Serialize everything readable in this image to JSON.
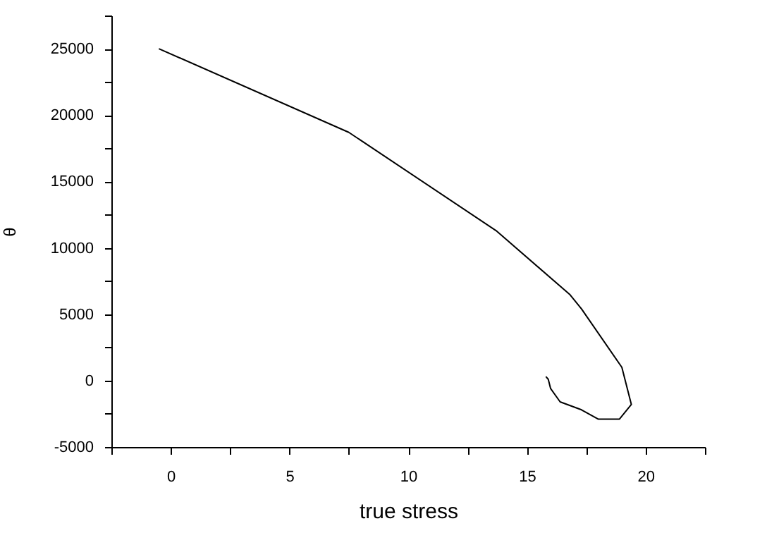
{
  "chart_data": {
    "type": "line",
    "xlabel": "true stress",
    "ylabel": "θ",
    "x": [
      -0.5,
      7.5,
      13.7,
      16.8,
      17.3,
      19.0,
      19.4,
      18.9,
      18.0,
      17.3,
      16.4,
      16.0,
      15.9,
      15.8
    ],
    "series": [
      {
        "color": "#000000",
        "values": [
          25000,
          18700,
          11300,
          6500,
          5400,
          1000,
          -1800,
          -2900,
          -2900,
          -2200,
          -1600,
          -600,
          100,
          300
        ]
      }
    ],
    "xlim": [
      -2.5,
      22.5
    ],
    "xticks": [
      {
        "value": -2.5,
        "label": null
      },
      0,
      {
        "value": 2.5,
        "label": null
      },
      5,
      {
        "value": 7.5,
        "label": null
      },
      10,
      {
        "value": 12.5,
        "label": null
      },
      15,
      {
        "value": 17.5,
        "label": null
      },
      20,
      {
        "value": 22.5,
        "label": null
      }
    ],
    "ylim": [
      -5000,
      27500
    ],
    "yticks": [
      -5000,
      {
        "value": -2500,
        "label": null
      },
      0,
      {
        "value": 2500,
        "label": null
      },
      5000,
      {
        "value": 7500,
        "label": null
      },
      10000,
      {
        "value": 12500,
        "label": null
      },
      15000,
      {
        "value": 17500,
        "label": null
      },
      20000,
      {
        "value": 22500,
        "label": null
      },
      25000,
      {
        "value": 27500,
        "label": null
      }
    ],
    "grid": false,
    "legend": false,
    "marker": "none",
    "line_style": "solid"
  }
}
